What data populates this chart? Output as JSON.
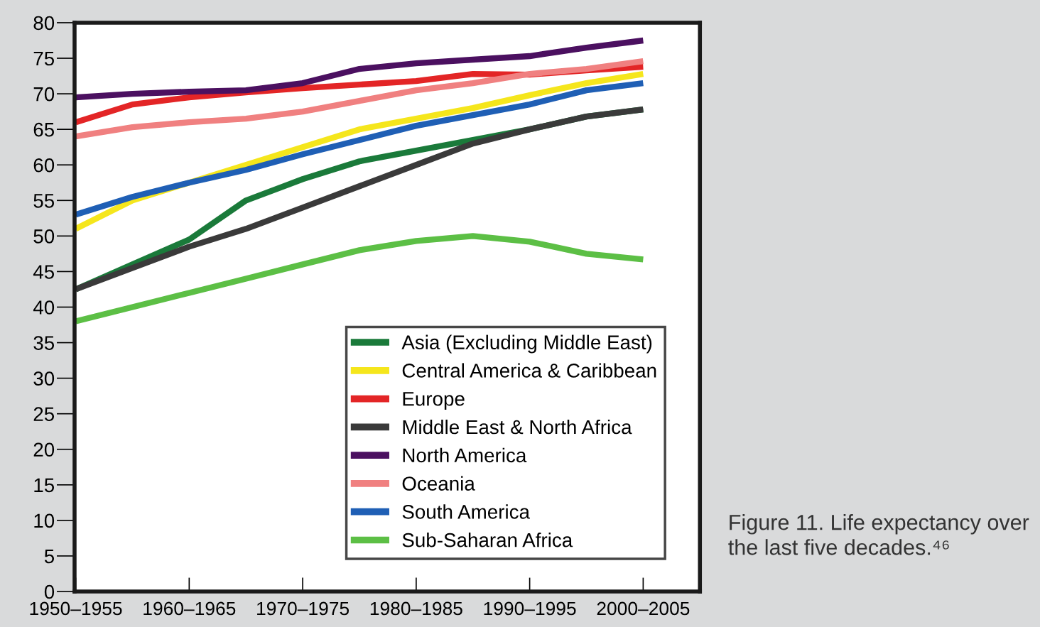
{
  "chart_data": {
    "type": "line",
    "categories": [
      "1950–1955",
      null,
      "1960–1965",
      null,
      "1970–1975",
      null,
      "1980–1985",
      null,
      "1990–1995",
      null,
      "2000–2005"
    ],
    "series": [
      {
        "name": "Asia (Excluding Middle East)",
        "color": "#1a7a3a",
        "values": [
          42.5,
          46,
          49.5,
          55,
          58,
          60.5,
          62,
          63.5,
          65,
          66.8,
          67.8
        ]
      },
      {
        "name": "Central America & Caribbean",
        "color": "#f5e61c",
        "values": [
          51,
          55,
          57.5,
          60,
          62.5,
          65,
          66.5,
          68,
          69.8,
          71.5,
          72.8
        ]
      },
      {
        "name": "Europe",
        "color": "#e32526",
        "values": [
          66,
          68.5,
          69.5,
          70.2,
          70.8,
          71.3,
          71.8,
          72.8,
          72.7,
          73.3,
          73.8
        ]
      },
      {
        "name": "Middle East & North Africa",
        "color": "#3a3a3a",
        "values": [
          42.5,
          45.5,
          48.5,
          51,
          54,
          57,
          60,
          63,
          65,
          66.8,
          67.8
        ]
      },
      {
        "name": "North America",
        "color": "#4b1060",
        "values": [
          69.5,
          70,
          70.3,
          70.5,
          71.5,
          73.5,
          74.3,
          74.8,
          75.3,
          76.5,
          77.5
        ]
      },
      {
        "name": "Oceania",
        "color": "#f08080",
        "values": [
          64,
          65.3,
          66,
          66.5,
          67.5,
          69,
          70.5,
          71.5,
          72.8,
          73.5,
          74.6
        ]
      },
      {
        "name": "South America",
        "color": "#1f5fb5",
        "values": [
          53,
          55.5,
          57.5,
          59.3,
          61.5,
          63.5,
          65.5,
          67,
          68.5,
          70.5,
          71.5
        ]
      },
      {
        "name": "Sub-Saharan Africa",
        "color": "#5cbf45",
        "values": [
          38,
          40,
          42,
          44,
          46,
          48,
          49.3,
          50,
          49.2,
          47.5,
          46.7
        ]
      }
    ],
    "ylim": [
      0,
      80
    ],
    "yticks": [
      0,
      5,
      10,
      15,
      20,
      25,
      30,
      35,
      40,
      45,
      50,
      55,
      60,
      65,
      70,
      75,
      80
    ],
    "legend": "bottom right",
    "grid": false,
    "marker": "none",
    "line_style": "solid",
    "annotations": [
      "Figure 11. Life expectancy over the last five decades.⁴⁶"
    ]
  }
}
